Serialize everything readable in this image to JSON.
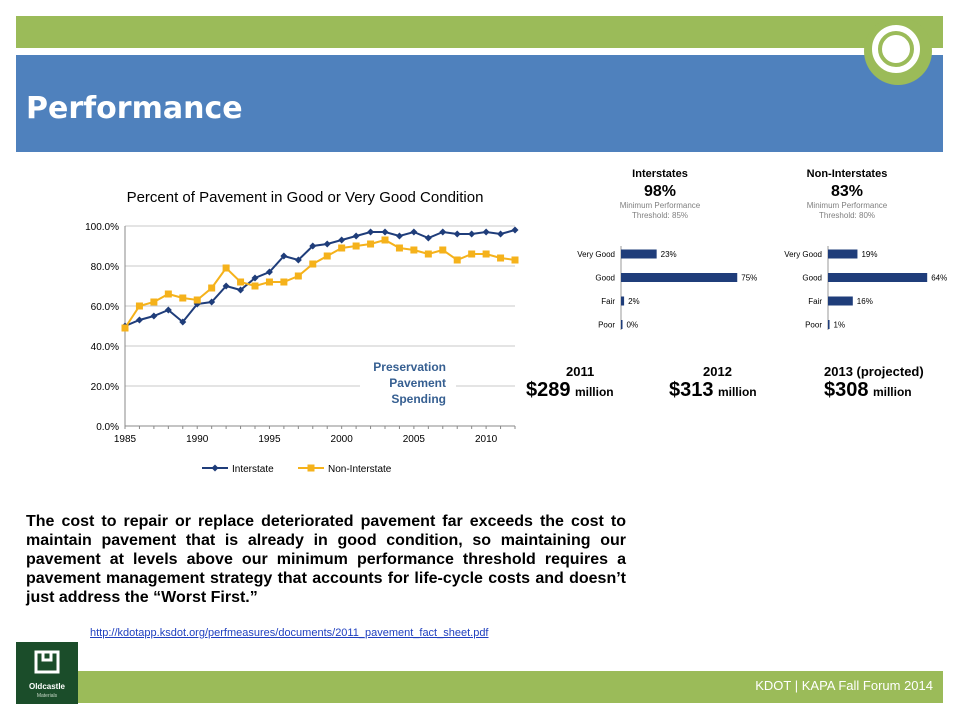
{
  "slide": {
    "title": "Performance",
    "footer": "KDOT | KAPA Fall Forum 2014",
    "logo_text": "Oldcastle",
    "logo_sub": "Materials",
    "body_text": "The cost to repair or replace deteriorated pavement far exceeds the cost to maintain pavement that is already in good condition, so maintaining our pavement at levels above our minimum performance threshold requires a pavement management strategy that accounts for life-cycle costs and doesn’t just address the “Worst First.”",
    "source_url": "http://kdotapp.ksdot.org/perfmeasures/documents/2011_pavement_fact_sheet.pdf"
  },
  "colors": {
    "interstate": "#1f3d7a",
    "non_interstate": "#f5b21b",
    "green": "#9bbb59",
    "blue": "#4f81bd",
    "bar": "#1f3d7a"
  },
  "spending": {
    "label": [
      "Preservation",
      "Pavement",
      "Spending"
    ],
    "items": [
      {
        "year": "2011",
        "amount": "$289",
        "unit": "million"
      },
      {
        "year": "2012",
        "amount": "$313",
        "unit": "million"
      },
      {
        "year": "2013 (projected)",
        "amount": "$308",
        "unit": "million"
      }
    ]
  },
  "chart_data": [
    {
      "type": "line",
      "title": "Percent of Pavement in Good or Very Good Condition",
      "xlabel": "",
      "ylabel": "",
      "xlim": [
        1985,
        2012
      ],
      "ylim": [
        0,
        100
      ],
      "x_ticks": [
        1985,
        1990,
        1995,
        2000,
        2005,
        2010
      ],
      "y_ticks": [
        0,
        20,
        40,
        60,
        80,
        100
      ],
      "y_tick_labels": [
        "0.0%",
        "20.0%",
        "40.0%",
        "60.0%",
        "80.0%",
        "100.0%"
      ],
      "grid": true,
      "legend": "bottom",
      "x": [
        1985,
        1986,
        1987,
        1988,
        1989,
        1990,
        1991,
        1992,
        1993,
        1994,
        1995,
        1996,
        1997,
        1998,
        1999,
        2000,
        2001,
        2002,
        2003,
        2004,
        2005,
        2006,
        2007,
        2008,
        2009,
        2010,
        2011,
        2012
      ],
      "series": [
        {
          "name": "Interstate",
          "marker": "diamond",
          "values": [
            50,
            53,
            55,
            58,
            52,
            61,
            62,
            70,
            68,
            74,
            77,
            85,
            83,
            90,
            91,
            93,
            95,
            97,
            97,
            95,
            97,
            94,
            97,
            96,
            96,
            97,
            96,
            98
          ]
        },
        {
          "name": "Non-Interstate",
          "marker": "square",
          "values": [
            49,
            60,
            62,
            66,
            64,
            63,
            69,
            79,
            72,
            70,
            72,
            72,
            75,
            81,
            85,
            89,
            90,
            91,
            93,
            89,
            88,
            86,
            88,
            83,
            86,
            86,
            84,
            83
          ]
        }
      ]
    },
    {
      "type": "bar",
      "orientation": "horizontal",
      "title": "Interstates",
      "value_label": "98%",
      "subtitle": [
        "Minimum Performance",
        "Threshold: 85%"
      ],
      "categories": [
        "Very Good",
        "Good",
        "Fair",
        "Poor"
      ],
      "values": [
        23,
        75,
        2,
        0
      ],
      "data_labels": [
        "23%",
        "75%",
        "2%",
        "0%"
      ]
    },
    {
      "type": "bar",
      "orientation": "horizontal",
      "title": "Non-Interstates",
      "value_label": "83%",
      "subtitle": [
        "Minimum Performance",
        "Threshold: 80%"
      ],
      "categories": [
        "Very Good",
        "Good",
        "Fair",
        "Poor"
      ],
      "values": [
        19,
        64,
        16,
        1
      ],
      "data_labels": [
        "19%",
        "64%",
        "16%",
        "1%"
      ]
    }
  ]
}
